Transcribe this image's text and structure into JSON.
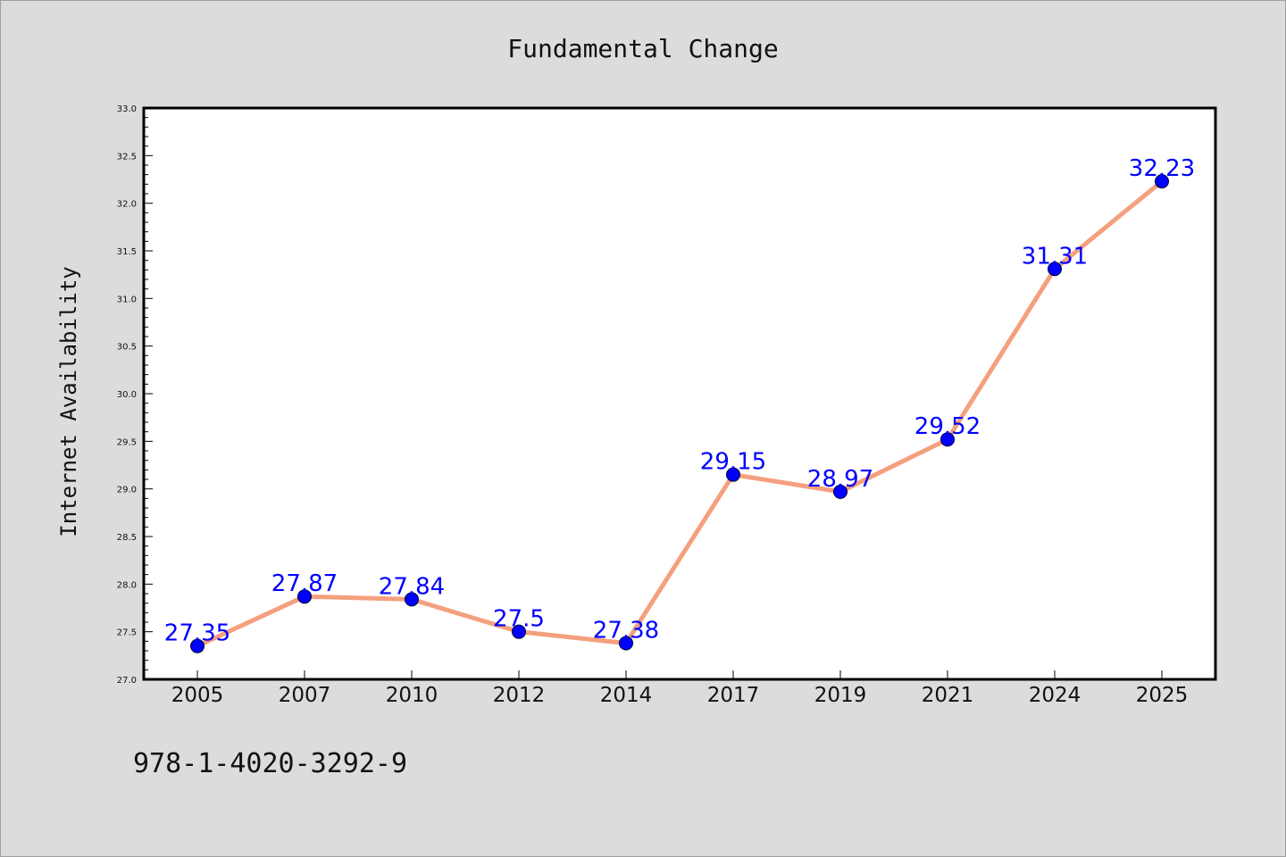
{
  "chart_data": {
    "type": "line",
    "title": "Fundamental Change",
    "xlabel": "",
    "ylabel": "Internet Availability",
    "categories": [
      "2005",
      "2007",
      "2010",
      "2012",
      "2014",
      "2017",
      "2019",
      "2021",
      "2024",
      "2025"
    ],
    "values": [
      27.35,
      27.87,
      27.84,
      27.5,
      27.38,
      29.15,
      28.97,
      29.52,
      31.31,
      32.23
    ],
    "data_labels": [
      "27.35",
      "27.87",
      "27.84",
      "27.5",
      "27.38",
      "29.15",
      "28.97",
      "29.52",
      "31.31",
      "32.23"
    ],
    "ylim": [
      27.0,
      33.0
    ],
    "yticks": [
      "27.0",
      "27.5",
      "28.0",
      "28.5",
      "29.0",
      "29.5",
      "30.0",
      "30.5",
      "31.0",
      "31.5",
      "32.0",
      "32.5",
      "33.0"
    ],
    "grid": false,
    "legend": "none",
    "line_color": "#f4a07e",
    "marker_color": "#0000ff",
    "label_color": "#0000ff",
    "background_color": "#dcdcdc",
    "plot_background": "#ffffff"
  },
  "footer": {
    "code": "978-1-4020-3292-9"
  }
}
